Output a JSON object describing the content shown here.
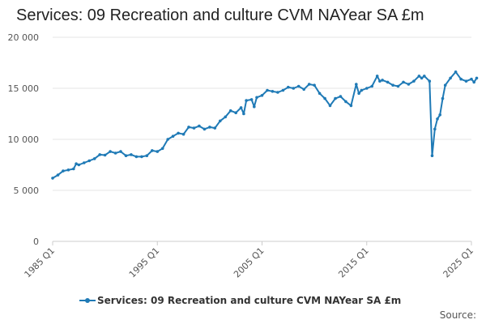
{
  "chart_data": {
    "type": "line",
    "title": "Services: 09 Recreation and culture CVM NAYear SA £m",
    "ylim": [
      0,
      20000
    ],
    "y_ticks": [
      "0",
      "5 000",
      "10 000",
      "15 000",
      "20 000"
    ],
    "x_ticks": [
      "1985 Q1",
      "1995 Q1",
      "2005 Q1",
      "2015 Q1",
      "2025 Q1"
    ],
    "grid": "horizontal",
    "legend_position": "bottom",
    "colors": {
      "series": "#1f7ab6",
      "grid": "#e6e6e6",
      "axis": "#cccccc"
    },
    "series": [
      {
        "name": "Services: 09 Recreation and culture CVM NAYear SA £m",
        "points": [
          [
            "1985 Q1",
            6200
          ],
          [
            "1985 Q3",
            6500
          ],
          [
            "1986 Q1",
            6900
          ],
          [
            "1986 Q3",
            7000
          ],
          [
            "1987 Q1",
            7100
          ],
          [
            "1987 Q2",
            7600
          ],
          [
            "1987 Q3",
            7500
          ],
          [
            "1988 Q1",
            7700
          ],
          [
            "1988 Q3",
            7900
          ],
          [
            "1989 Q1",
            8100
          ],
          [
            "1989 Q3",
            8500
          ],
          [
            "1990 Q1",
            8450
          ],
          [
            "1990 Q3",
            8800
          ],
          [
            "1991 Q1",
            8650
          ],
          [
            "1991 Q3",
            8800
          ],
          [
            "1992 Q1",
            8400
          ],
          [
            "1992 Q3",
            8500
          ],
          [
            "1993 Q1",
            8300
          ],
          [
            "1993 Q3",
            8300
          ],
          [
            "1994 Q1",
            8400
          ],
          [
            "1994 Q3",
            8900
          ],
          [
            "1995 Q1",
            8800
          ],
          [
            "1995 Q3",
            9100
          ],
          [
            "1996 Q1",
            10000
          ],
          [
            "1996 Q3",
            10300
          ],
          [
            "1997 Q1",
            10600
          ],
          [
            "1997 Q3",
            10500
          ],
          [
            "1998 Q1",
            11200
          ],
          [
            "1998 Q3",
            11100
          ],
          [
            "1999 Q1",
            11300
          ],
          [
            "1999 Q3",
            11000
          ],
          [
            "2000 Q1",
            11200
          ],
          [
            "2000 Q3",
            11100
          ],
          [
            "2001 Q1",
            11800
          ],
          [
            "2001 Q3",
            12200
          ],
          [
            "2002 Q1",
            12800
          ],
          [
            "2002 Q3",
            12600
          ],
          [
            "2003 Q1",
            13100
          ],
          [
            "2003 Q2",
            12500
          ],
          [
            "2003 Q3",
            13800
          ],
          [
            "2004 Q1",
            13900
          ],
          [
            "2004 Q2",
            13200
          ],
          [
            "2004 Q3",
            14100
          ],
          [
            "2005 Q1",
            14300
          ],
          [
            "2005 Q3",
            14800
          ],
          [
            "2006 Q1",
            14700
          ],
          [
            "2006 Q3",
            14600
          ],
          [
            "2007 Q1",
            14800
          ],
          [
            "2007 Q3",
            15100
          ],
          [
            "2008 Q1",
            15000
          ],
          [
            "2008 Q3",
            15200
          ],
          [
            "2009 Q1",
            14900
          ],
          [
            "2009 Q3",
            15400
          ],
          [
            "2010 Q1",
            15300
          ],
          [
            "2010 Q3",
            14500
          ],
          [
            "2011 Q1",
            14000
          ],
          [
            "2011 Q3",
            13300
          ],
          [
            "2012 Q1",
            14000
          ],
          [
            "2012 Q3",
            14200
          ],
          [
            "2013 Q1",
            13700
          ],
          [
            "2013 Q3",
            13300
          ],
          [
            "2014 Q1",
            15400
          ],
          [
            "2014 Q2",
            14500
          ],
          [
            "2014 Q3",
            14800
          ],
          [
            "2015 Q1",
            15000
          ],
          [
            "2015 Q3",
            15200
          ],
          [
            "2016 Q1",
            16200
          ],
          [
            "2016 Q2",
            15700
          ],
          [
            "2016 Q3",
            15800
          ],
          [
            "2017 Q1",
            15600
          ],
          [
            "2017 Q3",
            15300
          ],
          [
            "2018 Q1",
            15200
          ],
          [
            "2018 Q3",
            15600
          ],
          [
            "2019 Q1",
            15400
          ],
          [
            "2019 Q3",
            15700
          ],
          [
            "2020 Q1",
            16200
          ],
          [
            "2020 Q2",
            16000
          ],
          [
            "2020 Q3",
            16200
          ],
          [
            "2021 Q1",
            15700
          ],
          [
            "2021 Q2",
            8400
          ],
          [
            "2021 Q3",
            11000
          ],
          [
            "2021 Q4",
            12000
          ],
          [
            "2022 Q1",
            12400
          ],
          [
            "2022 Q2",
            14000
          ],
          [
            "2022 Q3",
            15300
          ],
          [
            "2023 Q1",
            16000
          ],
          [
            "2023 Q3",
            16600
          ],
          [
            "2024 Q1",
            15900
          ],
          [
            "2024 Q3",
            15700
          ],
          [
            "2025 Q1",
            15900
          ],
          [
            "2025 Q2",
            15600
          ],
          [
            "2025 Q3",
            16000
          ]
        ]
      }
    ]
  },
  "source_label": "Source:"
}
